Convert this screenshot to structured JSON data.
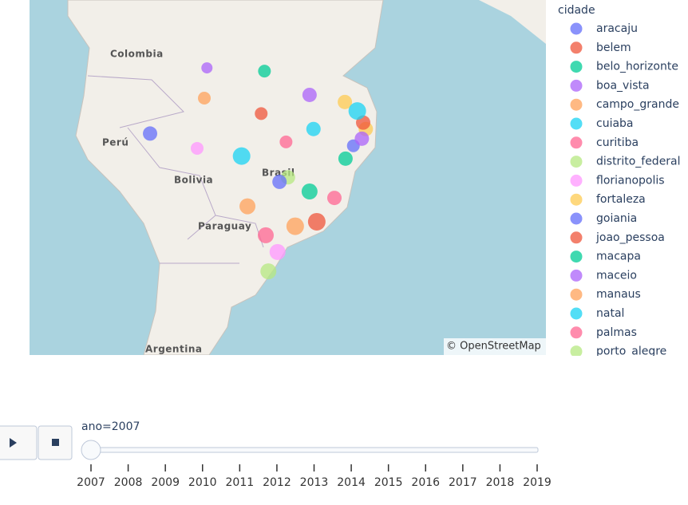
{
  "map": {
    "labels": {
      "colombia": "Colombia",
      "peru": "Perú",
      "bolivia": "Bolivia",
      "brasil": "Brasil",
      "paraguay": "Paraguay",
      "argentina": "Argentina"
    },
    "attribution": "© OpenStreetMap",
    "legend": {
      "title": "cidade",
      "entries": [
        {
          "name": "aracaju",
          "color": "#636EFA",
          "lon": -37.2,
          "lat": -10.5,
          "size": 8
        },
        {
          "name": "belem",
          "color": "#EF553B",
          "lon": -51.3,
          "lat": -5.5,
          "size": 8
        },
        {
          "name": "belo_horizonte",
          "color": "#00CC96",
          "lon": -43.9,
          "lat": -17.6,
          "size": 10
        },
        {
          "name": "boa_vista",
          "color": "#AB63FA",
          "lon": -59.6,
          "lat": 1.6,
          "size": 7
        },
        {
          "name": "campo_grande",
          "color": "#FFA15A",
          "lon": -53.4,
          "lat": -19.9,
          "size": 10
        },
        {
          "name": "cuiaba",
          "color": "#19D3F3",
          "lon": -54.3,
          "lat": -12.1,
          "size": 11
        },
        {
          "name": "curitiba",
          "color": "#FF6692",
          "lon": -50.6,
          "lat": -24.4,
          "size": 10
        },
        {
          "name": "distrito_federal",
          "color": "#B6E880",
          "lon": -47.2,
          "lat": -15.4,
          "size": 9
        },
        {
          "name": "florianopolis",
          "color": "#FF97FF",
          "lon": -48.8,
          "lat": -27.0,
          "size": 10
        },
        {
          "name": "fortaleza",
          "color": "#FECB52",
          "lon": -38.5,
          "lat": -3.7,
          "size": 9
        },
        {
          "name": "goiania",
          "color": "#636EFA",
          "lon": -48.5,
          "lat": -16.1,
          "size": 9
        },
        {
          "name": "joao_pessoa",
          "color": "#EF553B",
          "lon": -35.7,
          "lat": -6.9,
          "size": 9
        },
        {
          "name": "macapa",
          "color": "#00CC96",
          "lon": -50.8,
          "lat": 1.1,
          "size": 8
        },
        {
          "name": "maceio",
          "color": "#AB63FA",
          "lon": -35.9,
          "lat": -9.4,
          "size": 9
        },
        {
          "name": "manaus",
          "color": "#FFA15A",
          "lon": -60.0,
          "lat": -3.1,
          "size": 8
        },
        {
          "name": "natal",
          "color": "#19D3F3",
          "lon": -36.6,
          "lat": -5.1,
          "size": 11
        },
        {
          "name": "palmas",
          "color": "#FF6692",
          "lon": -47.5,
          "lat": -9.9,
          "size": 8
        },
        {
          "name": "porto_alegre",
          "color": "#B6E880",
          "lon": -50.2,
          "lat": -30.0,
          "size": 10
        }
      ]
    },
    "other_points": [
      {
        "color": "#FF97FF",
        "lon": -61.1,
        "lat": -10.9,
        "size": 8
      },
      {
        "color": "#FECB52",
        "lon": -35.3,
        "lat": -7.9,
        "size": 9
      },
      {
        "color": "#636EFA",
        "lon": -68.3,
        "lat": -8.6,
        "size": 9
      },
      {
        "color": "#EF553B",
        "lon": -42.8,
        "lat": -22.3,
        "size": 11
      },
      {
        "color": "#00CC96",
        "lon": -38.4,
        "lat": -12.5,
        "size": 9
      },
      {
        "color": "#AB63FA",
        "lon": -43.9,
        "lat": -2.6,
        "size": 9
      },
      {
        "color": "#FFA15A",
        "lon": -46.1,
        "lat": -23.0,
        "size": 11
      },
      {
        "color": "#19D3F3",
        "lon": -43.3,
        "lat": -7.9,
        "size": 9
      },
      {
        "color": "#FF6692",
        "lon": -40.1,
        "lat": -18.6,
        "size": 9
      }
    ]
  },
  "slider": {
    "current": "ano=2007",
    "ticks": [
      2007,
      2008,
      2009,
      2010,
      2011,
      2012,
      2013,
      2014,
      2015,
      2016,
      2017,
      2018,
      2019
    ]
  }
}
